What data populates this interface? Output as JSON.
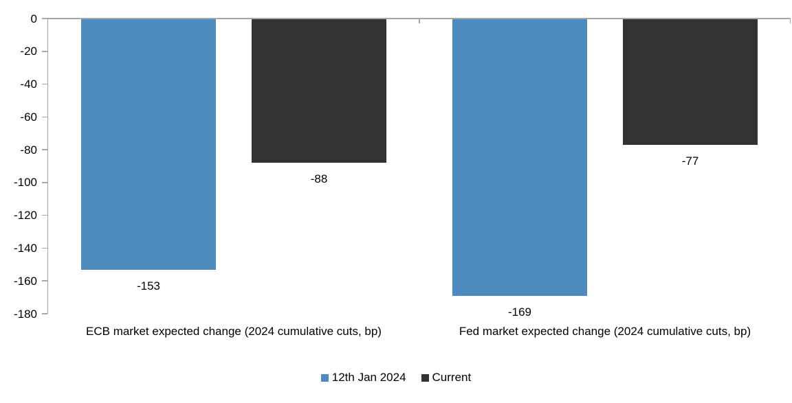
{
  "chart_data": {
    "type": "bar",
    "title": "",
    "orientation": "vertical",
    "categories": [
      "ECB market expected change (2024 cumulative cuts, bp)",
      "Fed market expected change (2024 cumulative cuts, bp)"
    ],
    "series": [
      {
        "name": "12th Jan 2024",
        "color": "#4D8BBE",
        "values": [
          -153,
          -169
        ],
        "labels": [
          "-153",
          "-169"
        ]
      },
      {
        "name": "Current",
        "color": "#333333",
        "values": [
          -88,
          -77
        ],
        "labels": [
          "-88",
          "-77"
        ]
      }
    ],
    "ylim": [
      -180,
      0
    ],
    "ytick_step": 20,
    "y_tick_labels": [
      "0",
      "-20",
      "-40",
      "-60",
      "-80",
      "-100",
      "-120",
      "-140",
      "-160",
      "-180"
    ],
    "legend": {
      "position": "bottom",
      "entries": [
        "12th Jan 2024",
        "Current"
      ]
    },
    "grid": false,
    "axis_color": "#A6A6A6",
    "background_color": "#FFFFFF",
    "text_color": "#000000"
  }
}
